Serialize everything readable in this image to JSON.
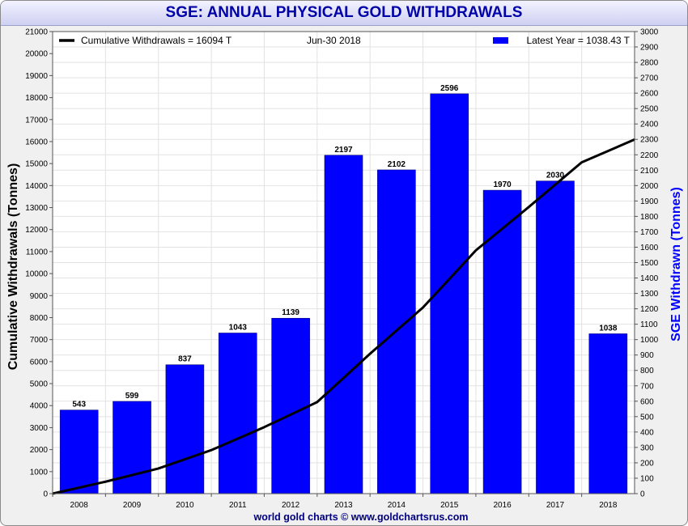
{
  "chart_data": {
    "type": "bar",
    "title": "SGE: ANNUAL PHYSICAL GOLD WITHDRAWALS",
    "categories": [
      "2008",
      "2009",
      "2010",
      "2011",
      "2012",
      "2013",
      "2014",
      "2015",
      "2016",
      "2017",
      "2018"
    ],
    "series": [
      {
        "name": "SGE Withdrawn (Tonnes)",
        "axis": "right",
        "chart_type": "bar",
        "color": "#0000ff",
        "values": [
          543,
          599,
          837,
          1043,
          1139,
          2197,
          2102,
          2596,
          1970,
          2030,
          1038
        ]
      },
      {
        "name": "Cumulative Withdrawals (Tonnes)",
        "axis": "left",
        "chart_type": "line",
        "color": "#000000",
        "values": [
          543,
          1142,
          1979,
          3022,
          4161,
          6358,
          8460,
          11056,
          13026,
          15056,
          16094
        ]
      }
    ],
    "left_axis": {
      "label": "Cumulative Withdrawals (Tonnes)",
      "min": 0,
      "max": 21000,
      "step": 1000
    },
    "right_axis": {
      "label": "SGE Withdrawn (Tonnes)",
      "min": 0,
      "max": 3000,
      "step": 100
    },
    "legend": {
      "cumulative_label": "Cumulative Withdrawals = 16094 T",
      "date_label": "Jun-30  2018",
      "latest_label": "Latest Year = 1038.43 T"
    },
    "footer": "world gold charts © www.goldchartsrus.com"
  },
  "colors": {
    "bar": "#0000ff",
    "line": "#000000",
    "title_text": "#0000a8",
    "right_axis_label": "#0000ff",
    "footer_text": "#000080",
    "grid": "#e2e2e2"
  }
}
